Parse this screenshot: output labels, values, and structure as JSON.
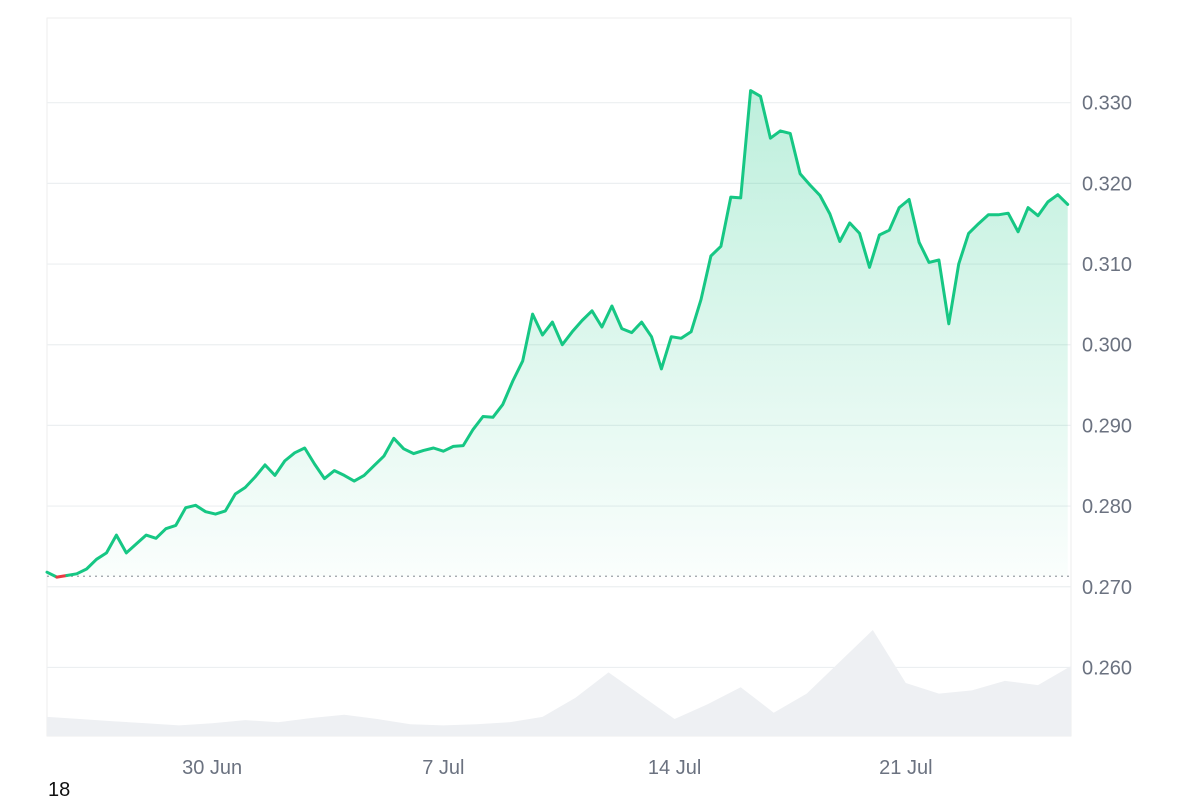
{
  "chart_data": {
    "type": "area",
    "title": "",
    "xlabel": "",
    "ylabel": "",
    "x_ticks": [
      {
        "label": "30 Jun",
        "day": 5
      },
      {
        "label": "7 Jul",
        "day": 12
      },
      {
        "label": "14 Jul",
        "day": 19
      },
      {
        "label": "21 Jul",
        "day": 26
      }
    ],
    "y_ticks": [
      "0.330",
      "0.320",
      "0.310",
      "0.300",
      "0.290",
      "0.280",
      "0.270",
      "0.260"
    ],
    "ylim": [
      0.2515,
      0.3405
    ],
    "xlim": [
      0,
      31
    ],
    "reference_price": 0.2713,
    "colors": {
      "up": "#16c784",
      "down": "#ea3943",
      "volume": "#eef0f3"
    },
    "corner_label": "18",
    "series": [
      {
        "kind": "price",
        "x": [
          0,
          0.3,
          0.6,
          0.9,
          1.2,
          1.5,
          1.8,
          2.1,
          2.4,
          2.7,
          3.0,
          3.3,
          3.6,
          3.9,
          4.2,
          4.5,
          4.8,
          5.1,
          5.4,
          5.7,
          6.0,
          6.3,
          6.6,
          6.9,
          7.2,
          7.5,
          7.8,
          8.1,
          8.4,
          8.7,
          9.0,
          9.3,
          9.6,
          9.9,
          10.2,
          10.5,
          10.8,
          11.1,
          11.4,
          11.7,
          12.0,
          12.3,
          12.6,
          12.9,
          13.2,
          13.5,
          13.8,
          14.1,
          14.4,
          14.7,
          15.0,
          15.3,
          15.6,
          15.9,
          16.2,
          16.5,
          16.8,
          17.1,
          17.4,
          17.7,
          18.0,
          18.3,
          18.6,
          18.9,
          19.2,
          19.5,
          19.8,
          20.1,
          20.4,
          20.7,
          21.0,
          21.3,
          21.6,
          21.9,
          22.2,
          22.5,
          22.8,
          23.1,
          23.4,
          23.7,
          24.0,
          24.3,
          24.6,
          24.9,
          25.2,
          25.5,
          25.8,
          26.1,
          26.4,
          26.7,
          27.0,
          27.3,
          27.6,
          27.9,
          28.2,
          28.5,
          28.8,
          29.1,
          29.4,
          29.7,
          30.0,
          30.3,
          30.6,
          30.9
        ],
        "y": [
          0.2718,
          0.2712,
          0.2714,
          0.2716,
          0.2722,
          0.2734,
          0.2742,
          0.2764,
          0.2742,
          0.2753,
          0.2764,
          0.276,
          0.2772,
          0.2776,
          0.2798,
          0.2801,
          0.2793,
          0.279,
          0.2794,
          0.2815,
          0.2823,
          0.2836,
          0.2851,
          0.2838,
          0.2856,
          0.2866,
          0.2872,
          0.2852,
          0.2834,
          0.2844,
          0.2838,
          0.2831,
          0.2838,
          0.285,
          0.2862,
          0.2884,
          0.2871,
          0.2865,
          0.2869,
          0.2872,
          0.2868,
          0.2874,
          0.2875,
          0.2895,
          0.2911,
          0.291,
          0.2926,
          0.2955,
          0.298,
          0.3038,
          0.3012,
          0.3028,
          0.3,
          0.3016,
          0.303,
          0.3042,
          0.3022,
          0.3048,
          0.302,
          0.3015,
          0.3028,
          0.301,
          0.297,
          0.301,
          0.3008,
          0.3016,
          0.3056,
          0.311,
          0.3122,
          0.3183,
          0.3182,
          0.3315,
          0.3308,
          0.3256,
          0.3265,
          0.3262,
          0.3212,
          0.3198,
          0.3185,
          0.3162,
          0.3128,
          0.3151,
          0.3138,
          0.3096,
          0.3136,
          0.3142,
          0.317,
          0.318,
          0.3127,
          0.3102,
          0.3105,
          0.3026,
          0.31,
          0.3138,
          0.315,
          0.3161,
          0.3161,
          0.3163,
          0.314,
          0.317,
          0.316,
          0.3177,
          0.3186,
          0.3174
        ]
      },
      {
        "kind": "volume",
        "x": [
          0,
          1,
          2,
          3,
          4,
          5,
          6,
          7,
          8,
          9,
          10,
          11,
          12,
          13,
          14,
          15,
          16,
          17,
          18,
          19,
          20,
          21,
          22,
          23,
          24,
          25,
          26,
          27,
          28,
          29,
          30,
          31
        ],
        "y": [
          0.18,
          0.16,
          0.14,
          0.12,
          0.1,
          0.12,
          0.15,
          0.13,
          0.17,
          0.2,
          0.16,
          0.11,
          0.1,
          0.11,
          0.13,
          0.18,
          0.36,
          0.6,
          0.38,
          0.16,
          0.3,
          0.46,
          0.22,
          0.4,
          0.7,
          1.0,
          0.5,
          0.4,
          0.43,
          0.52,
          0.48,
          0.66
        ]
      }
    ]
  }
}
